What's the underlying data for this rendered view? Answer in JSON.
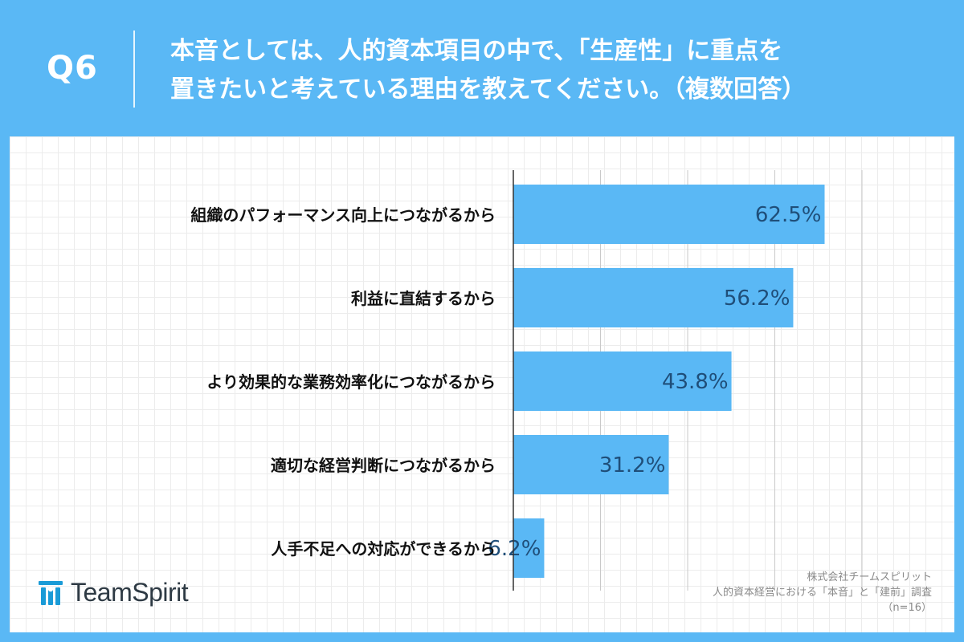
{
  "question": {
    "label": "Q6",
    "line1": "本音としては、人的資本項目の中で、「生産性」に重点を",
    "line2": "置きたいと考えている理由を教えてください。（複数回答）"
  },
  "chart_data": {
    "type": "bar",
    "orientation": "horizontal",
    "categories": [
      "組織のパフォーマンス向上につながるから",
      "利益に直結するから",
      "より効果的な業務効率化につながるから",
      "適切な経営判断につながるから",
      "人手不足への対応ができるから"
    ],
    "values": [
      62.5,
      56.2,
      43.8,
      31.2,
      6.2
    ],
    "value_labels": [
      "62.5%",
      "56.2%",
      "43.8%",
      "31.2%",
      "6.2%"
    ],
    "xlim": [
      0,
      70
    ],
    "gridlines": [
      0,
      17.5,
      35,
      52.5,
      70
    ],
    "bar_color": "#5ab8f5",
    "label_color": "#1f4e79"
  },
  "branding": {
    "logo_text": "TeamSpirit",
    "logo_color": "#1a9bd7"
  },
  "source": {
    "company": "株式会社チームスピリット",
    "survey": "人的資本経営における「本音」と「建前」調査",
    "sample": "（n=16）"
  }
}
